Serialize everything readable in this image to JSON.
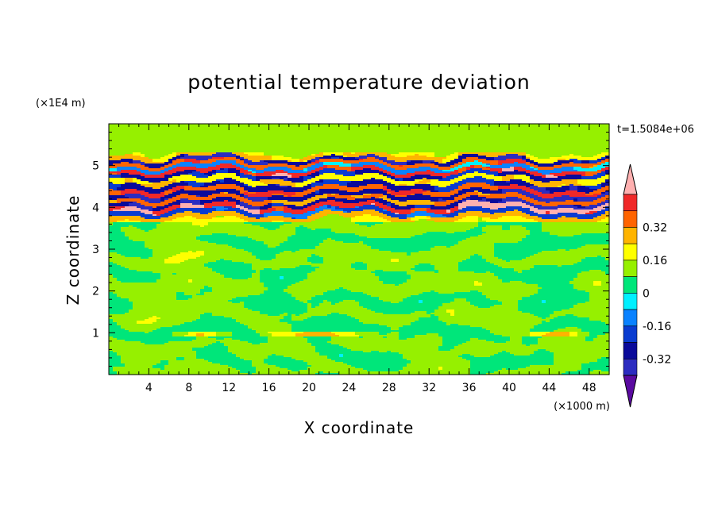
{
  "chart_data": {
    "type": "heatmap",
    "title": "potential temperature deviation",
    "xlabel": "X coordinate",
    "ylabel": "Z coordinate",
    "x_unit": "(×1000 m)",
    "y_unit": "(×1E4 m)",
    "time_label": "t=1.5084e+06",
    "xlim": [
      0,
      50
    ],
    "ylim": [
      0,
      6
    ],
    "x_ticks": [
      4,
      8,
      12,
      16,
      20,
      24,
      28,
      32,
      36,
      40,
      44,
      48
    ],
    "y_ticks": [
      1,
      2,
      3,
      4,
      5
    ],
    "legend": {
      "levels": [
        -0.48,
        -0.4,
        -0.32,
        -0.24,
        -0.16,
        -0.08,
        0,
        0.08,
        0.16,
        0.24,
        0.32,
        0.4,
        0.48
      ],
      "colors": [
        "#5a0aa0",
        "#2c2cc0",
        "#0a0a9a",
        "#0a3cd0",
        "#0a82ff",
        "#00f0ff",
        "#00e67a",
        "#96f000",
        "#ffff00",
        "#ffb400",
        "#ff6400",
        "#f02828",
        "#ffb0b0"
      ],
      "tick_labels": [
        "0.32",
        "0.16",
        "0",
        "-0.16",
        "-0.32"
      ],
      "tick_values": [
        0.32,
        0.16,
        0,
        -0.16,
        -0.32
      ]
    },
    "bands": [
      {
        "z": 5.22,
        "value": 0.2
      },
      {
        "z": 5.13,
        "value": -0.45
      },
      {
        "z": 5.05,
        "value": 0.35
      },
      {
        "z": 4.96,
        "value": -0.2
      },
      {
        "z": 4.86,
        "value": 0.42
      },
      {
        "z": 4.78,
        "value": -0.4
      },
      {
        "z": 4.66,
        "value": 0.18
      },
      {
        "z": 4.53,
        "value": -0.42
      },
      {
        "z": 4.4,
        "value": 0.38
      },
      {
        "z": 4.3,
        "value": -0.46
      },
      {
        "z": 4.18,
        "value": 0.3
      },
      {
        "z": 4.1,
        "value": -0.44
      },
      {
        "z": 4.0,
        "value": 0.45
      },
      {
        "z": 3.88,
        "value": -0.3
      },
      {
        "z": 3.78,
        "value": 0.22
      },
      {
        "z": 0.96,
        "value": 0.25
      }
    ]
  }
}
